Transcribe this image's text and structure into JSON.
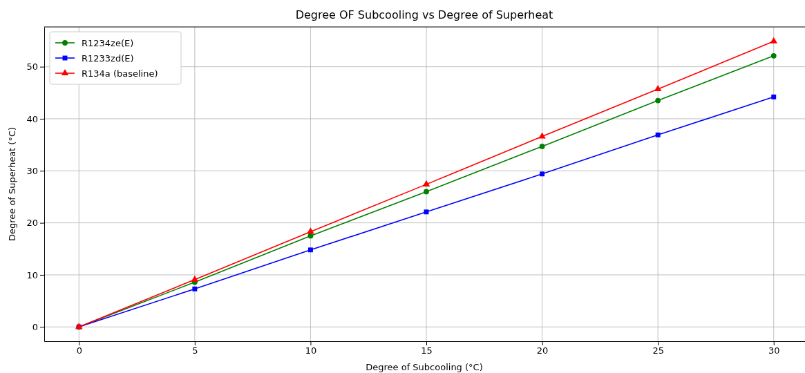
{
  "chart_data": {
    "type": "line",
    "title": "Degree OF Subcooling vs Degree of Superheat",
    "xlabel": "Degree of Subcooling (°C)",
    "ylabel": "Degree of Superheat (°C)",
    "x": [
      0,
      5,
      10,
      15,
      20,
      25,
      30
    ],
    "series": [
      {
        "name": "R1234ze(E)",
        "color": "#008000",
        "marker": "circle",
        "values": [
          0,
          8.6,
          17.5,
          26.0,
          34.7,
          43.5,
          52.1
        ]
      },
      {
        "name": "R1233zd(E)",
        "color": "#0000ff",
        "marker": "square",
        "values": [
          0,
          7.3,
          14.8,
          22.1,
          29.4,
          36.9,
          44.2
        ]
      },
      {
        "name": "R134a (baseline)",
        "color": "#ff0000",
        "marker": "triangle",
        "values": [
          0,
          9.1,
          18.3,
          27.4,
          36.6,
          45.7,
          54.9
        ]
      }
    ],
    "xlim": [
      -1.5,
      31.5
    ],
    "xticks": [
      0,
      5,
      10,
      15,
      20,
      25,
      30
    ],
    "ylim": [
      -2.75,
      57.65
    ],
    "yticks": [
      0,
      10,
      20,
      30,
      40,
      50
    ],
    "grid": true,
    "legend": "top left",
    "line_style": "solid"
  }
}
